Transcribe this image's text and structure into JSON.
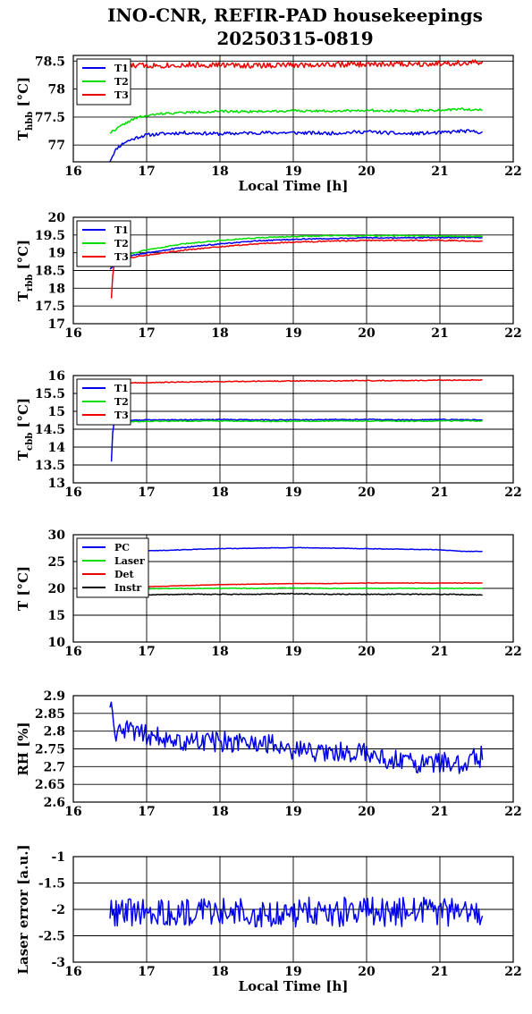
{
  "figure": {
    "title_line1": "INO-CNR, REFIR-PAD housekeepings",
    "title_line2": "20250315-0819"
  },
  "colors": {
    "blue": "#0000ee",
    "green": "#00dd00",
    "red": "#ee0000",
    "black": "#000000"
  },
  "chart_data": [
    {
      "type": "line",
      "id": "thbb",
      "ylabel": "T",
      "ylabel_sub": "hbb",
      "ylabel_unit": "[°C]",
      "xlabel": "Local Time [h]",
      "xlim": [
        16,
        22
      ],
      "ylim": [
        76.7,
        78.6
      ],
      "xticks": [
        16,
        17,
        18,
        19,
        20,
        21,
        22
      ],
      "yticks": [
        77,
        77.5,
        78,
        78.5
      ],
      "grid": true,
      "legend_position": "top-left",
      "series": [
        {
          "name": "T1",
          "color": "blue",
          "x": [
            16.5,
            16.55,
            16.6,
            16.7,
            16.8,
            16.9,
            17.0,
            17.2,
            17.5,
            18.0,
            18.5,
            19.0,
            19.5,
            20.0,
            20.5,
            21.0,
            21.3,
            21.58
          ],
          "y": [
            76.72,
            76.85,
            76.95,
            77.05,
            77.1,
            77.15,
            77.18,
            77.2,
            77.22,
            77.2,
            77.22,
            77.22,
            77.21,
            77.24,
            77.2,
            77.22,
            77.25,
            77.23
          ],
          "noise": 0.03,
          "seed": 11
        },
        {
          "name": "T2",
          "color": "green",
          "x": [
            16.5,
            16.6,
            16.7,
            16.8,
            16.9,
            17.0,
            17.2,
            17.5,
            18.0,
            18.5,
            19.0,
            19.5,
            20.0,
            20.5,
            21.0,
            21.3,
            21.58
          ],
          "y": [
            77.22,
            77.3,
            77.38,
            77.45,
            77.5,
            77.52,
            77.56,
            77.58,
            77.6,
            77.6,
            77.61,
            77.61,
            77.62,
            77.61,
            77.62,
            77.64,
            77.63
          ],
          "noise": 0.02,
          "seed": 22
        },
        {
          "name": "T3",
          "color": "red",
          "x": [
            16.5,
            17.0,
            17.5,
            18.0,
            18.5,
            19.0,
            19.5,
            20.0,
            20.5,
            21.0,
            21.58
          ],
          "y": [
            78.42,
            78.42,
            78.43,
            78.43,
            78.42,
            78.43,
            78.44,
            78.44,
            78.45,
            78.46,
            78.47
          ],
          "noise": 0.05,
          "seed": 33
        }
      ]
    },
    {
      "type": "line",
      "id": "trbb",
      "ylabel": "T",
      "ylabel_sub": "rbb",
      "ylabel_unit": "[°C]",
      "xlabel": "",
      "xlim": [
        16,
        22
      ],
      "ylim": [
        17,
        20
      ],
      "xticks": [
        16,
        17,
        18,
        19,
        20,
        21,
        22
      ],
      "yticks": [
        17,
        17.5,
        18,
        18.5,
        19,
        19.5,
        20
      ],
      "grid": true,
      "legend_position": "top-left",
      "series": [
        {
          "name": "T1",
          "color": "blue",
          "x": [
            16.5,
            16.8,
            17.0,
            17.5,
            18.0,
            18.5,
            19.0,
            19.5,
            20.0,
            20.5,
            21.0,
            21.58
          ],
          "y": [
            18.55,
            18.92,
            19.0,
            19.15,
            19.25,
            19.33,
            19.38,
            19.4,
            19.42,
            19.42,
            19.43,
            19.43
          ],
          "noise": 0.015,
          "seed": 44
        },
        {
          "name": "T2",
          "color": "green",
          "x": [
            16.5,
            16.8,
            17.0,
            17.5,
            18.0,
            18.5,
            19.0,
            19.5,
            20.0,
            20.5,
            21.0,
            21.58
          ],
          "y": [
            18.6,
            18.98,
            19.08,
            19.25,
            19.35,
            19.42,
            19.46,
            19.48,
            19.48,
            19.48,
            19.47,
            19.46
          ],
          "noise": 0.015,
          "seed": 55
        },
        {
          "name": "T3",
          "color": "red",
          "x": [
            16.52,
            16.53,
            16.54,
            16.56,
            16.6,
            16.8,
            17.0,
            17.5,
            18.0,
            18.5,
            19.0,
            19.5,
            20.0,
            20.5,
            21.0,
            21.58
          ],
          "y": [
            17.72,
            18.05,
            18.5,
            18.7,
            18.8,
            18.87,
            18.93,
            19.07,
            19.17,
            19.25,
            19.3,
            19.33,
            19.35,
            19.35,
            19.35,
            19.33
          ],
          "noise": 0.015,
          "seed": 66
        }
      ]
    },
    {
      "type": "line",
      "id": "tcbb",
      "ylabel": "T",
      "ylabel_sub": "cbb",
      "ylabel_unit": "[°C]",
      "xlabel": "",
      "xlim": [
        16,
        22
      ],
      "ylim": [
        13,
        16
      ],
      "xticks": [
        16,
        17,
        18,
        19,
        20,
        21,
        22
      ],
      "yticks": [
        13,
        13.5,
        14,
        14.5,
        15,
        15.5,
        16
      ],
      "grid": true,
      "legend_position": "top-left",
      "series": [
        {
          "name": "T1",
          "color": "blue",
          "x": [
            16.52,
            16.53,
            16.54,
            16.56,
            16.6,
            16.8,
            17.0,
            17.5,
            18.0,
            18.5,
            19.0,
            19.5,
            20.0,
            20.5,
            21.0,
            21.58
          ],
          "y": [
            13.6,
            14.1,
            14.55,
            14.68,
            14.72,
            14.75,
            14.76,
            14.76,
            14.77,
            14.76,
            14.76,
            14.77,
            14.77,
            14.76,
            14.77,
            14.76
          ],
          "noise": 0.012,
          "seed": 77
        },
        {
          "name": "T2",
          "color": "green",
          "x": [
            16.55,
            17.0,
            17.5,
            18.0,
            18.5,
            19.0,
            19.5,
            20.0,
            20.5,
            21.0,
            21.58
          ],
          "y": [
            14.7,
            14.72,
            14.73,
            14.73,
            14.72,
            14.72,
            14.73,
            14.73,
            14.72,
            14.73,
            14.73
          ],
          "noise": 0.012,
          "seed": 88
        },
        {
          "name": "T3",
          "color": "red",
          "x": [
            16.55,
            17.0,
            17.5,
            18.0,
            18.5,
            19.0,
            19.5,
            20.0,
            20.5,
            21.0,
            21.58
          ],
          "y": [
            15.78,
            15.8,
            15.82,
            15.83,
            15.84,
            15.85,
            15.85,
            15.86,
            15.86,
            15.87,
            15.88
          ],
          "noise": 0.012,
          "seed": 99
        }
      ]
    },
    {
      "type": "line",
      "id": "temps",
      "ylabel": "T [°C]",
      "ylabel_sub": "",
      "ylabel_unit": "",
      "xlabel": "",
      "xlim": [
        16,
        22
      ],
      "ylim": [
        10,
        30
      ],
      "xticks": [
        16,
        17,
        18,
        19,
        20,
        21,
        22
      ],
      "yticks": [
        10,
        15,
        20,
        25,
        30
      ],
      "grid": true,
      "legend_position": "top-left",
      "series": [
        {
          "name": "PC",
          "color": "blue",
          "x": [
            16.55,
            17.0,
            17.5,
            18.0,
            18.5,
            19.0,
            19.5,
            20.0,
            20.5,
            21.0,
            21.3,
            21.58
          ],
          "y": [
            26.8,
            27.0,
            27.2,
            27.4,
            27.5,
            27.6,
            27.5,
            27.4,
            27.3,
            27.2,
            26.9,
            26.9
          ],
          "noise": 0.05,
          "seed": 101
        },
        {
          "name": "Laser",
          "color": "green",
          "x": [
            16.55,
            17.0,
            17.5,
            18.0,
            18.5,
            19.0,
            19.5,
            20.0,
            20.5,
            21.0,
            21.58
          ],
          "y": [
            19.9,
            19.9,
            20.0,
            20.0,
            20.0,
            20.1,
            20.0,
            20.0,
            20.0,
            20.0,
            20.0
          ],
          "noise": 0.05,
          "seed": 102
        },
        {
          "name": "Det",
          "color": "red",
          "x": [
            16.55,
            17.0,
            17.5,
            18.0,
            18.5,
            19.0,
            19.5,
            20.0,
            20.5,
            21.0,
            21.58
          ],
          "y": [
            20.1,
            20.3,
            20.5,
            20.7,
            20.8,
            20.9,
            20.9,
            21.0,
            21.0,
            21.0,
            21.0
          ],
          "noise": 0.03,
          "seed": 103
        },
        {
          "name": "Instr",
          "color": "black",
          "x": [
            16.55,
            17.0,
            17.5,
            18.0,
            18.5,
            19.0,
            19.5,
            20.0,
            20.5,
            21.0,
            21.58
          ],
          "y": [
            18.7,
            18.8,
            18.9,
            18.9,
            18.9,
            19.0,
            18.9,
            18.9,
            18.9,
            18.9,
            18.8
          ],
          "noise": 0.08,
          "seed": 104
        }
      ]
    },
    {
      "type": "line",
      "id": "rh",
      "ylabel": "RH [%]",
      "ylabel_sub": "",
      "ylabel_unit": "",
      "xlabel": "",
      "xlim": [
        16,
        22
      ],
      "ylim": [
        2.6,
        2.9
      ],
      "xticks": [
        16,
        17,
        18,
        19,
        20,
        21,
        22
      ],
      "yticks": [
        2.6,
        2.65,
        2.7,
        2.75,
        2.8,
        2.85,
        2.9
      ],
      "grid": true,
      "legend_position": "none",
      "series": [
        {
          "name": "",
          "color": "blue",
          "x": [
            16.5,
            16.53,
            16.56,
            16.6,
            16.7,
            16.8,
            17.0,
            17.5,
            18.0,
            18.5,
            19.0,
            19.5,
            20.0,
            20.5,
            21.0,
            21.3,
            21.58
          ],
          "y": [
            2.88,
            2.85,
            2.8,
            2.79,
            2.8,
            2.8,
            2.79,
            2.77,
            2.77,
            2.77,
            2.75,
            2.74,
            2.74,
            2.71,
            2.71,
            2.71,
            2.73
          ],
          "noise": 0.03,
          "seed": 105
        }
      ]
    },
    {
      "type": "line",
      "id": "laser",
      "ylabel": "Laser error [a.u.]",
      "ylabel_sub": "",
      "ylabel_unit": "",
      "xlabel": "Local Time [h]",
      "xlim": [
        16,
        22
      ],
      "ylim": [
        -3,
        -1
      ],
      "xticks": [
        16,
        17,
        18,
        19,
        20,
        21,
        22
      ],
      "yticks": [
        -3,
        -2.5,
        -2,
        -1.5,
        -1
      ],
      "grid": true,
      "legend_position": "none",
      "series": [
        {
          "name": "",
          "color": "blue",
          "x": [
            16.5,
            17.0,
            17.5,
            18.0,
            18.5,
            19.0,
            19.5,
            20.0,
            20.5,
            21.0,
            21.58
          ],
          "y": [
            -2.05,
            -2.05,
            -2.05,
            -2.05,
            -2.05,
            -2.05,
            -2.05,
            -2.05,
            -2.05,
            -2.05,
            -2.05
          ],
          "noise": 0.28,
          "seed": 106
        }
      ]
    }
  ]
}
